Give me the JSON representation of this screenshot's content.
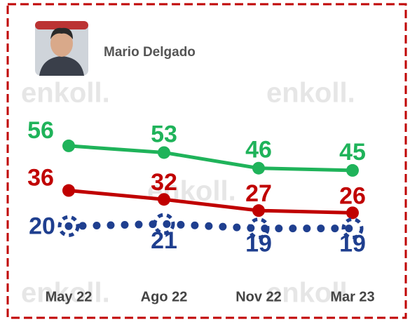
{
  "chart_data": {
    "type": "line",
    "title": "Mario Delgado",
    "watermark": "enkoll.",
    "categories": [
      "May 22",
      "Ago 22",
      "Nov 22",
      "Mar 23"
    ],
    "series": [
      {
        "color": "#1fb35a",
        "values": [
          56,
          53,
          46,
          45
        ]
      },
      {
        "color": "#c00000",
        "values": [
          36,
          32,
          27,
          26
        ]
      },
      {
        "color": "#1f3f8f",
        "values": [
          20,
          21,
          19,
          19
        ]
      }
    ]
  }
}
